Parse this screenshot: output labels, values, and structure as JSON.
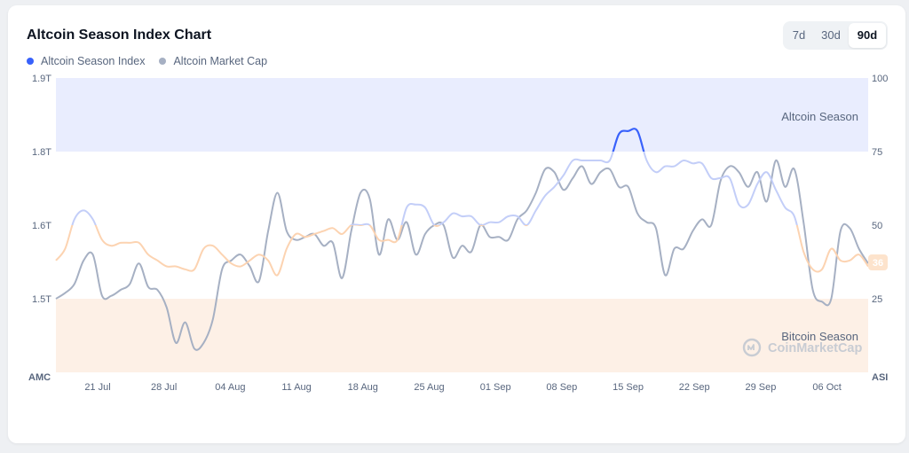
{
  "header": {
    "title": "Altcoin Season Index Chart"
  },
  "legend": {
    "items": [
      {
        "label": "Altcoin Season Index",
        "color": "#3861fb"
      },
      {
        "label": "Altcoin Market Cap",
        "color": "#a6b0c3"
      }
    ]
  },
  "range_selector": {
    "options": [
      "7d",
      "30d",
      "90d"
    ],
    "selected": "90d"
  },
  "watermark": {
    "text": "CoinMarketCap"
  },
  "chart_data": {
    "type": "line",
    "title": "Altcoin Season Index Chart",
    "left_axis": {
      "label": "AMC",
      "ticks": [
        "1.5T",
        "1.6T",
        "1.8T",
        "1.9T"
      ]
    },
    "right_axis": {
      "label": "ASI",
      "ticks": [
        "25",
        "50",
        "75",
        "100"
      ],
      "range": [
        0,
        100
      ]
    },
    "x_ticks": [
      "21 Jul",
      "28 Jul",
      "04 Aug",
      "11 Aug",
      "18 Aug",
      "25 Aug",
      "01 Sep",
      "08 Sep",
      "15 Sep",
      "22 Sep",
      "29 Sep",
      "06 Oct"
    ],
    "zones": [
      {
        "label": "Altcoin Season",
        "from": 75,
        "to": 100,
        "color": "#e9edfe"
      },
      {
        "label": "Bitcoin Season",
        "from": 0,
        "to": 25,
        "color": "#fdf0e6"
      }
    ],
    "current_value_label": "36",
    "grid": false,
    "legend_position": "top-left",
    "series": [
      {
        "name": "Altcoin Season Index",
        "axis": "right",
        "values": [
          38,
          42,
          52,
          55,
          52,
          45,
          43,
          44,
          44,
          44,
          40,
          38,
          36,
          36,
          35,
          35,
          42,
          43,
          40,
          37,
          36,
          38,
          40,
          38,
          33,
          42,
          47,
          46,
          47,
          48,
          49,
          47,
          50,
          50,
          50,
          45,
          45,
          45,
          56,
          57,
          56,
          50,
          51,
          54,
          53,
          53,
          50,
          51,
          51,
          53,
          53,
          50,
          55,
          60,
          63,
          67,
          72,
          72,
          72,
          72,
          72,
          81,
          82,
          82,
          72,
          68,
          70,
          70,
          72,
          71,
          71,
          66,
          66,
          66,
          57,
          57,
          64,
          68,
          62,
          56,
          53,
          41,
          35,
          35,
          42,
          38,
          38,
          40,
          36
        ]
      },
      {
        "name": "Altcoin Market Cap",
        "axis": "left",
        "values": [
          25,
          27,
          30,
          38,
          40,
          26,
          26,
          28,
          30,
          37,
          29,
          28,
          22,
          10,
          17,
          8,
          10,
          18,
          35,
          38,
          40,
          36,
          31,
          48,
          61,
          48,
          45,
          46,
          47,
          43,
          44,
          32,
          48,
          61,
          59,
          40,
          52,
          45,
          51,
          40,
          47,
          50,
          50,
          39,
          43,
          41,
          50,
          46,
          46,
          45,
          52,
          55,
          61,
          69,
          68,
          62,
          66,
          70,
          64,
          68,
          69,
          63,
          63,
          54,
          51,
          49,
          33,
          42,
          42,
          48,
          52,
          50,
          65,
          70,
          68,
          63,
          68,
          58,
          72,
          63,
          69,
          51,
          28,
          24,
          25,
          48,
          49,
          42,
          37
        ]
      }
    ]
  }
}
